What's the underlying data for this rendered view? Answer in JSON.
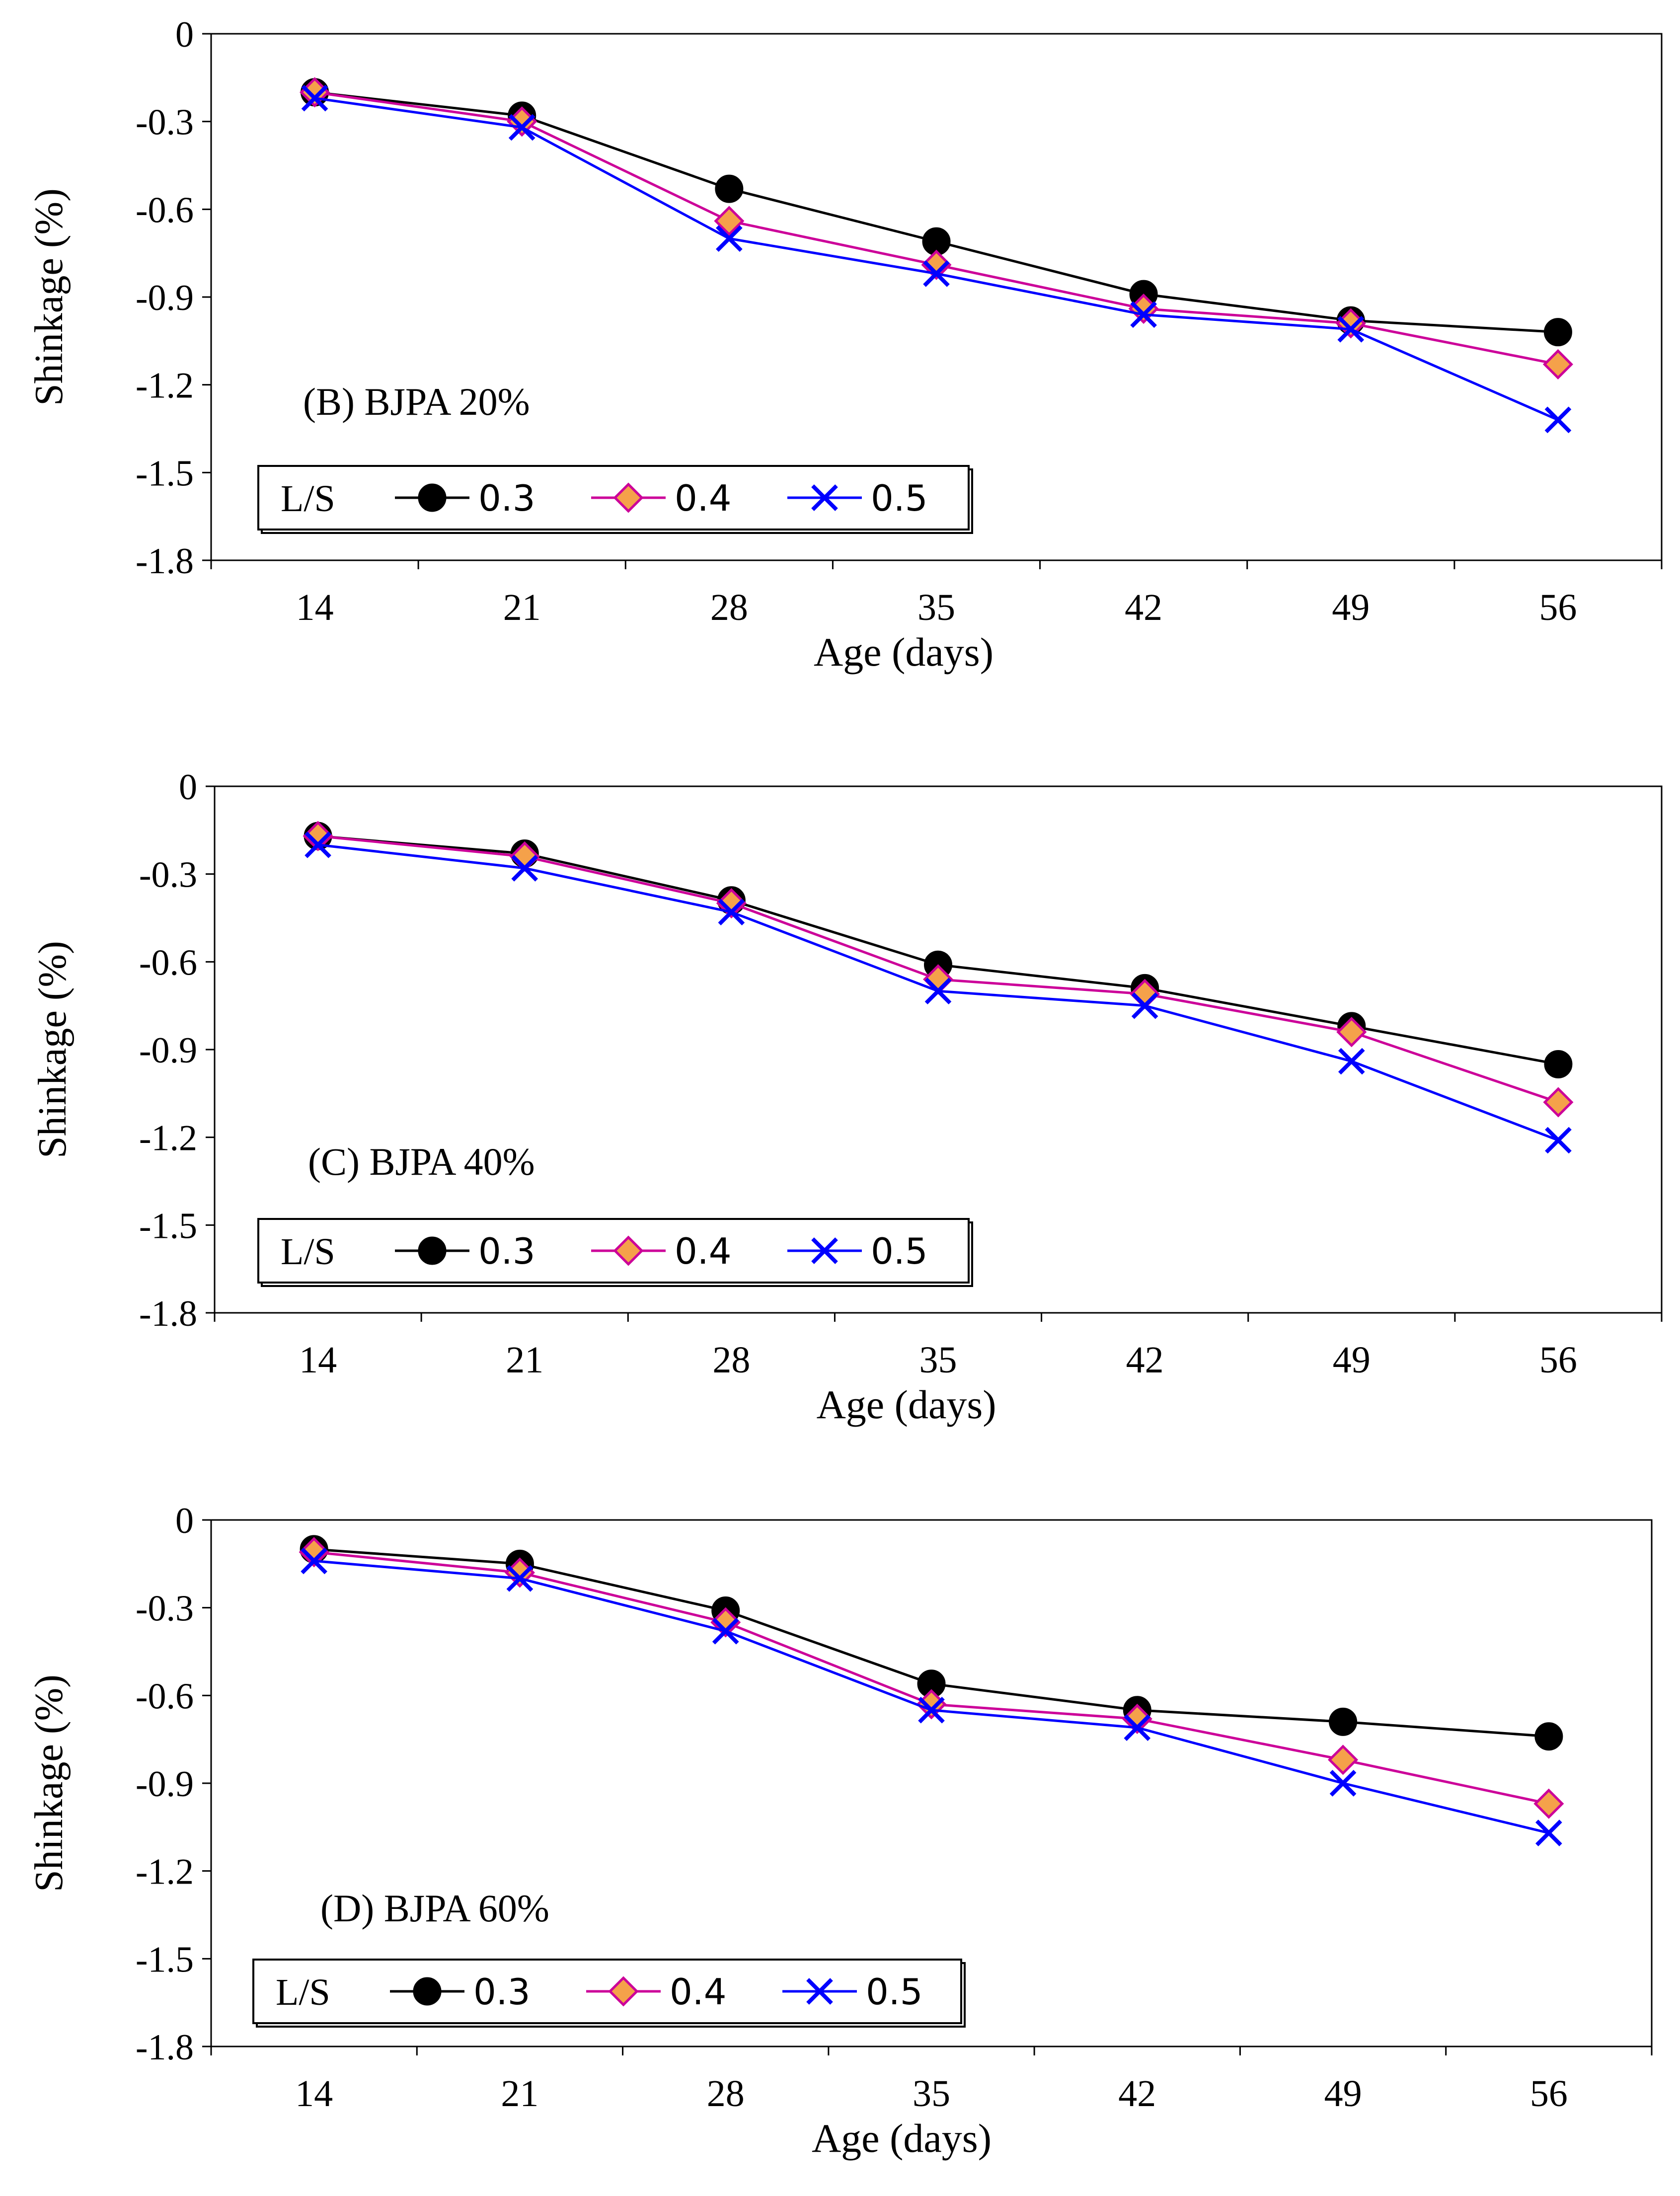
{
  "chart_data": [
    {
      "type": "line",
      "panel_label": "(B)  BJPA 20%",
      "xlabel": "Age (days)",
      "ylabel": "Shinkage (%)",
      "categories": [
        "14",
        "21",
        "28",
        "35",
        "42",
        "49",
        "56"
      ],
      "yticks": [
        "0",
        "-0.3",
        "-0.6",
        "-0.9",
        "-1.2",
        "-1.5",
        "-1.8"
      ],
      "ylim": [
        -1.8,
        0
      ],
      "grid": false,
      "legend": {
        "title": "L/S",
        "placement": "bottom-left"
      },
      "series": [
        {
          "name": "0.3",
          "values": [
            -0.2,
            -0.28,
            -0.53,
            -0.71,
            -0.89,
            -0.98,
            -1.02
          ]
        },
        {
          "name": "0.4",
          "values": [
            -0.2,
            -0.3,
            -0.64,
            -0.79,
            -0.94,
            -0.99,
            -1.13
          ]
        },
        {
          "name": "0.5",
          "values": [
            -0.22,
            -0.32,
            -0.7,
            -0.82,
            -0.96,
            -1.01,
            -1.32
          ]
        }
      ]
    },
    {
      "type": "line",
      "panel_label": "(C)  BJPA 40%",
      "xlabel": "Age (days)",
      "ylabel": "Shinkage (%)",
      "categories": [
        "14",
        "21",
        "28",
        "35",
        "42",
        "49",
        "56"
      ],
      "yticks": [
        "0",
        "-0.3",
        "-0.6",
        "-0.9",
        "-1.2",
        "-1.5",
        "-1.8"
      ],
      "ylim": [
        -1.8,
        0
      ],
      "grid": false,
      "legend": {
        "title": "L/S",
        "placement": "bottom-left"
      },
      "series": [
        {
          "name": "0.3",
          "values": [
            -0.17,
            -0.23,
            -0.39,
            -0.61,
            -0.69,
            -0.82,
            -0.95
          ]
        },
        {
          "name": "0.4",
          "values": [
            -0.17,
            -0.24,
            -0.4,
            -0.66,
            -0.71,
            -0.84,
            -1.08
          ]
        },
        {
          "name": "0.5",
          "values": [
            -0.2,
            -0.28,
            -0.43,
            -0.7,
            -0.75,
            -0.94,
            -1.21
          ]
        }
      ]
    },
    {
      "type": "line",
      "panel_label": "(D) BJPA 60%",
      "xlabel": "Age (days)",
      "ylabel": "Shinkage (%)",
      "categories": [
        "14",
        "21",
        "28",
        "35",
        "42",
        "49",
        "56"
      ],
      "yticks": [
        "0",
        "-0.3",
        "-0.6",
        "-0.9",
        "-1.2",
        "-1.5",
        "-1.8"
      ],
      "ylim": [
        -1.8,
        0
      ],
      "grid": false,
      "legend": {
        "title": "L/S",
        "placement": "bottom-left"
      },
      "series": [
        {
          "name": "0.3",
          "values": [
            -0.1,
            -0.15,
            -0.31,
            -0.56,
            -0.65,
            -0.69,
            -0.74
          ]
        },
        {
          "name": "0.4",
          "values": [
            -0.11,
            -0.18,
            -0.35,
            -0.63,
            -0.68,
            -0.82,
            -0.97
          ]
        },
        {
          "name": "0.5",
          "values": [
            -0.14,
            -0.2,
            -0.38,
            -0.65,
            -0.71,
            -0.9,
            -1.07
          ]
        }
      ]
    }
  ],
  "styles": {
    "series": [
      {
        "name": "0.3",
        "line": "#000000",
        "marker": "circle",
        "fill": "#000000",
        "stroke": "#000000"
      },
      {
        "name": "0.4",
        "line": "#cc0099",
        "marker": "diamond",
        "fill": "#f5a14a",
        "stroke": "#cc0099"
      },
      {
        "name": "0.5",
        "line": "#0000ff",
        "marker": "cross",
        "fill": "#0000ff",
        "stroke": "#0000ff"
      }
    ],
    "axis": "#000000",
    "background": "#ffffff"
  }
}
